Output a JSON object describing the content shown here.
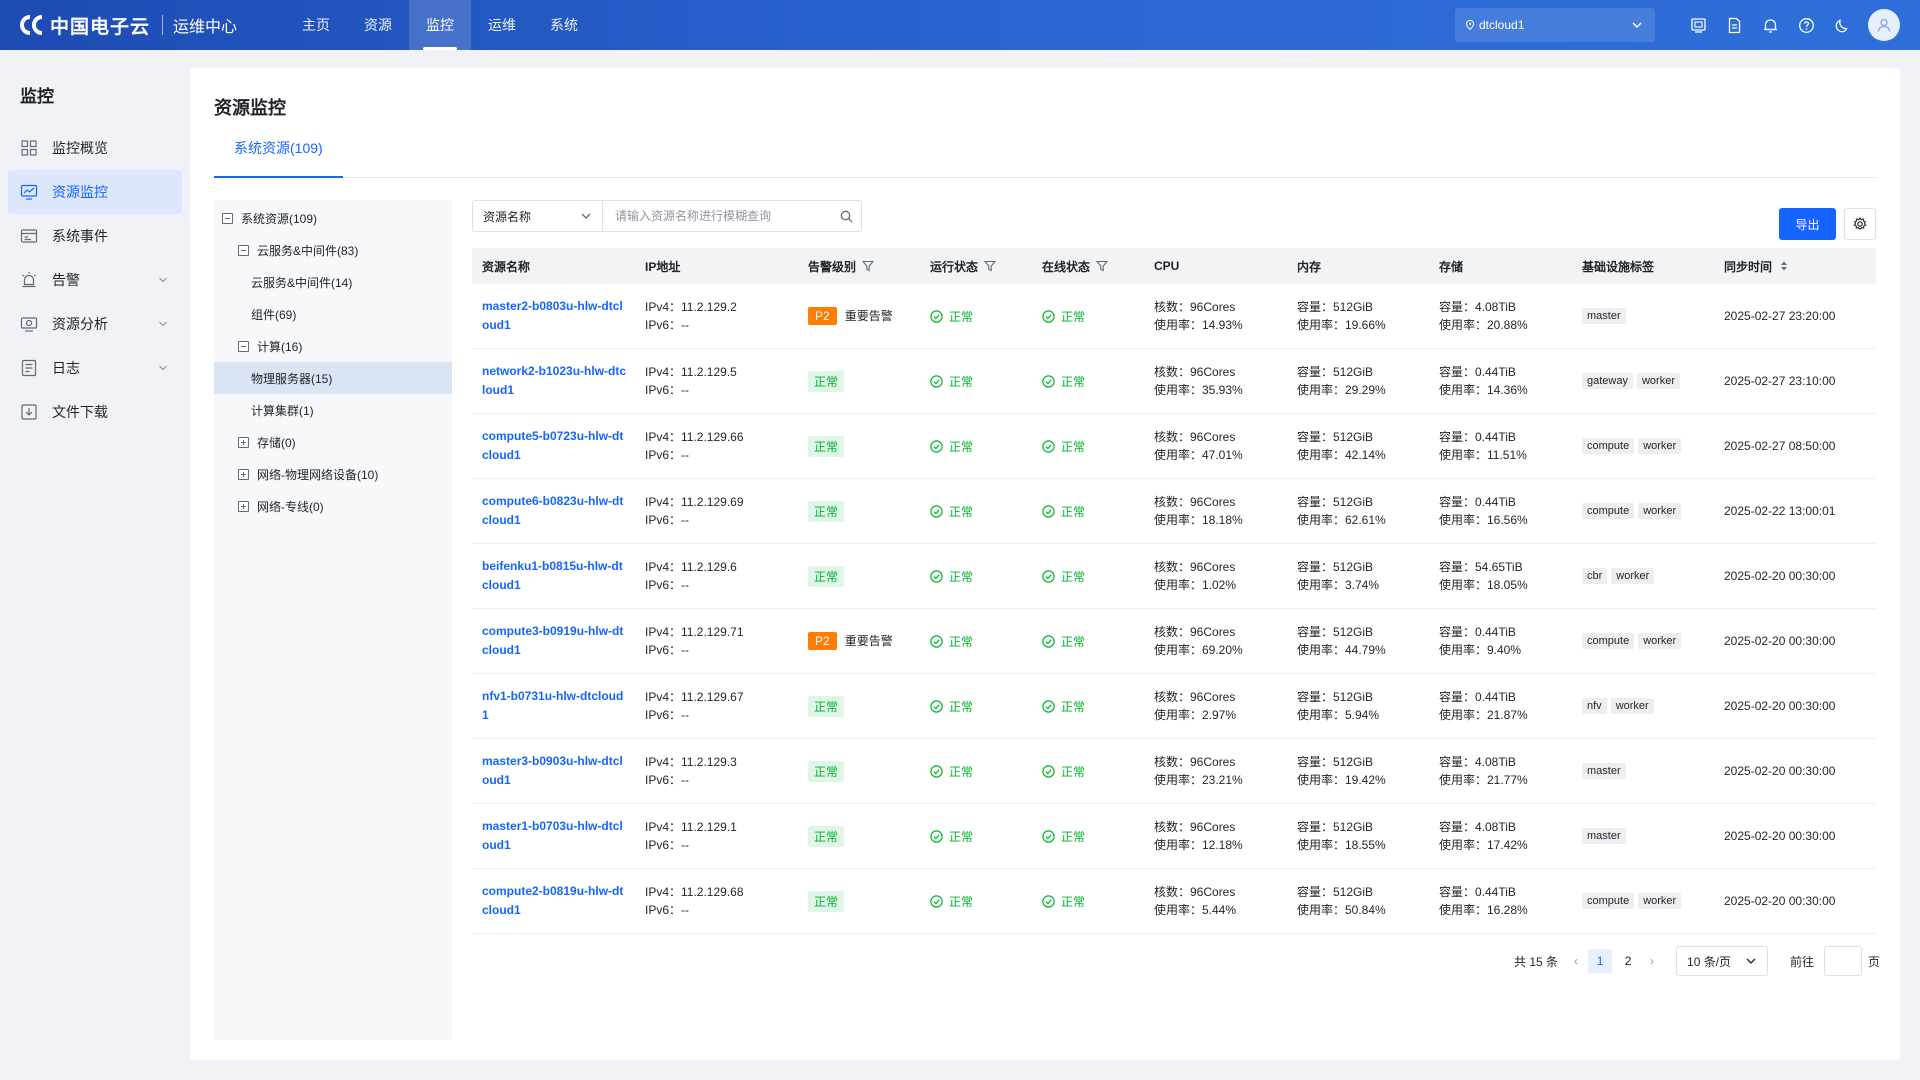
{
  "app": {
    "brand": "中国电子云",
    "subtitle": "运维中心",
    "nav": [
      {
        "label": "主页"
      },
      {
        "label": "资源"
      },
      {
        "label": "监控"
      },
      {
        "label": "运维"
      },
      {
        "label": "系统"
      }
    ],
    "active_nav": "监控",
    "region": "dtcloud1",
    "top_icons": [
      "screen-icon",
      "document-icon",
      "bell-icon",
      "help-icon",
      "moon-icon"
    ],
    "colors": {
      "brand": "#1d4bb3",
      "accent": "#1664ff",
      "ok": "#00b42a",
      "warn": "#ff7d00"
    }
  },
  "sidebar": {
    "title": "监控",
    "items": [
      {
        "label": "监控概览",
        "icon": "grid-icon"
      },
      {
        "label": "资源监控",
        "icon": "monitor-chart-icon",
        "active": true
      },
      {
        "label": "系统事件",
        "icon": "event-icon"
      },
      {
        "label": "告警",
        "icon": "alarm-icon",
        "expandable": true
      },
      {
        "label": "资源分析",
        "icon": "analysis-icon",
        "expandable": true
      },
      {
        "label": "日志",
        "icon": "log-icon",
        "expandable": true
      },
      {
        "label": "文件下载",
        "icon": "download-icon"
      }
    ]
  },
  "page": {
    "title": "资源监控",
    "tab": "系统资源(109)"
  },
  "tree": [
    {
      "label": "系统资源(109)",
      "level": 0,
      "toggle": "minus"
    },
    {
      "label": "云服务&中间件(83)",
      "level": 1,
      "toggle": "minus"
    },
    {
      "label": "云服务&中间件(14)",
      "level": 2,
      "toggle": "none"
    },
    {
      "label": "组件(69)",
      "level": 2,
      "toggle": "none"
    },
    {
      "label": "计算(16)",
      "level": 1,
      "toggle": "minus"
    },
    {
      "label": "物理服务器(15)",
      "level": 2,
      "toggle": "none",
      "selected": true
    },
    {
      "label": "计算集群(1)",
      "level": 2,
      "toggle": "none"
    },
    {
      "label": "存储(0)",
      "level": 1,
      "toggle": "plus"
    },
    {
      "label": "网络-物理网络设备(10)",
      "level": 1,
      "toggle": "plus"
    },
    {
      "label": "网络-专线(0)",
      "level": 1,
      "toggle": "plus"
    }
  ],
  "toolbar": {
    "filter_field": "资源名称",
    "search_placeholder": "请输入资源名称进行模糊查询",
    "export_label": "导出"
  },
  "table": {
    "headers": {
      "name": "资源名称",
      "ip": "IP地址",
      "alarm": "告警级别",
      "run": "运行状态",
      "online": "在线状态",
      "cpu": "CPU",
      "mem": "内存",
      "storage": "存储",
      "tags": "基础设施标签",
      "time": "同步时间"
    },
    "labels": {
      "ipv4": "IPv4：",
      "ipv6": "IPv6：",
      "cores": "核数：",
      "usage": "使用率：",
      "capacity": "容量："
    },
    "rows": [
      {
        "name": "master2-b0803u-hlw-dtcloud1",
        "ipv4": "11.2.129.2",
        "ipv6": "--",
        "alarm_level": "P2",
        "alarm_text": "重要告警",
        "run": "正常",
        "online": "正常",
        "cpu_cores": "96Cores",
        "cpu_usage": "14.93%",
        "mem_cap": "512GiB",
        "mem_usage": "19.66%",
        "sto_cap": "4.08TiB",
        "sto_usage": "20.88%",
        "tags": [
          "master"
        ],
        "time": "2025-02-27 23:20:00"
      },
      {
        "name": "network2-b1023u-hlw-dtcloud1",
        "ipv4": "11.2.129.5",
        "ipv6": "--",
        "alarm_level": "",
        "alarm_text": "正常",
        "run": "正常",
        "online": "正常",
        "cpu_cores": "96Cores",
        "cpu_usage": "35.93%",
        "mem_cap": "512GiB",
        "mem_usage": "29.29%",
        "sto_cap": "0.44TiB",
        "sto_usage": "14.36%",
        "tags": [
          "gateway",
          "worker"
        ],
        "time": "2025-02-27 23:10:00"
      },
      {
        "name": "compute5-b0723u-hlw-dtcloud1",
        "ipv4": "11.2.129.66",
        "ipv6": "--",
        "alarm_level": "",
        "alarm_text": "正常",
        "run": "正常",
        "online": "正常",
        "cpu_cores": "96Cores",
        "cpu_usage": "47.01%",
        "mem_cap": "512GiB",
        "mem_usage": "42.14%",
        "sto_cap": "0.44TiB",
        "sto_usage": "11.51%",
        "tags": [
          "compute",
          "worker"
        ],
        "time": "2025-02-27 08:50:00"
      },
      {
        "name": "compute6-b0823u-hlw-dtcloud1",
        "ipv4": "11.2.129.69",
        "ipv6": "--",
        "alarm_level": "",
        "alarm_text": "正常",
        "run": "正常",
        "online": "正常",
        "cpu_cores": "96Cores",
        "cpu_usage": "18.18%",
        "mem_cap": "512GiB",
        "mem_usage": "62.61%",
        "sto_cap": "0.44TiB",
        "sto_usage": "16.56%",
        "tags": [
          "compute",
          "worker"
        ],
        "time": "2025-02-22 13:00:01"
      },
      {
        "name": "beifenku1-b0815u-hlw-dtcloud1",
        "ipv4": "11.2.129.6",
        "ipv6": "--",
        "alarm_level": "",
        "alarm_text": "正常",
        "run": "正常",
        "online": "正常",
        "cpu_cores": "96Cores",
        "cpu_usage": "1.02%",
        "mem_cap": "512GiB",
        "mem_usage": "3.74%",
        "sto_cap": "54.65TiB",
        "sto_usage": "18.05%",
        "tags": [
          "cbr",
          "worker"
        ],
        "time": "2025-02-20 00:30:00"
      },
      {
        "name": "compute3-b0919u-hlw-dtcloud1",
        "ipv4": "11.2.129.71",
        "ipv6": "--",
        "alarm_level": "P2",
        "alarm_text": "重要告警",
        "run": "正常",
        "online": "正常",
        "cpu_cores": "96Cores",
        "cpu_usage": "69.20%",
        "mem_cap": "512GiB",
        "mem_usage": "44.79%",
        "sto_cap": "0.44TiB",
        "sto_usage": "9.40%",
        "tags": [
          "compute",
          "worker"
        ],
        "time": "2025-02-20 00:30:00"
      },
      {
        "name": "nfv1-b0731u-hlw-dtcloud1",
        "ipv4": "11.2.129.67",
        "ipv6": "--",
        "alarm_level": "",
        "alarm_text": "正常",
        "run": "正常",
        "online": "正常",
        "cpu_cores": "96Cores",
        "cpu_usage": "2.97%",
        "mem_cap": "512GiB",
        "mem_usage": "5.94%",
        "sto_cap": "0.44TiB",
        "sto_usage": "21.87%",
        "tags": [
          "nfv",
          "worker"
        ],
        "time": "2025-02-20 00:30:00"
      },
      {
        "name": "master3-b0903u-hlw-dtcloud1",
        "ipv4": "11.2.129.3",
        "ipv6": "--",
        "alarm_level": "",
        "alarm_text": "正常",
        "run": "正常",
        "online": "正常",
        "cpu_cores": "96Cores",
        "cpu_usage": "23.21%",
        "mem_cap": "512GiB",
        "mem_usage": "19.42%",
        "sto_cap": "4.08TiB",
        "sto_usage": "21.77%",
        "tags": [
          "master"
        ],
        "time": "2025-02-20 00:30:00"
      },
      {
        "name": "master1-b0703u-hlw-dtcloud1",
        "ipv4": "11.2.129.1",
        "ipv6": "--",
        "alarm_level": "",
        "alarm_text": "正常",
        "run": "正常",
        "online": "正常",
        "cpu_cores": "96Cores",
        "cpu_usage": "12.18%",
        "mem_cap": "512GiB",
        "mem_usage": "18.55%",
        "sto_cap": "4.08TiB",
        "sto_usage": "17.42%",
        "tags": [
          "master"
        ],
        "time": "2025-02-20 00:30:00"
      },
      {
        "name": "compute2-b0819u-hlw-dtcloud1",
        "ipv4": "11.2.129.68",
        "ipv6": "--",
        "alarm_level": "",
        "alarm_text": "正常",
        "run": "正常",
        "online": "正常",
        "cpu_cores": "96Cores",
        "cpu_usage": "5.44%",
        "mem_cap": "512GiB",
        "mem_usage": "50.84%",
        "sto_cap": "0.44TiB",
        "sto_usage": "16.28%",
        "tags": [
          "compute",
          "worker"
        ],
        "time": "2025-02-20 00:30:00"
      }
    ]
  },
  "pagination": {
    "total": "共 15 条",
    "pages": [
      "1",
      "2"
    ],
    "current": "1",
    "page_size": "10 条/页",
    "goto_label": "前往",
    "page_suffix": "页"
  }
}
